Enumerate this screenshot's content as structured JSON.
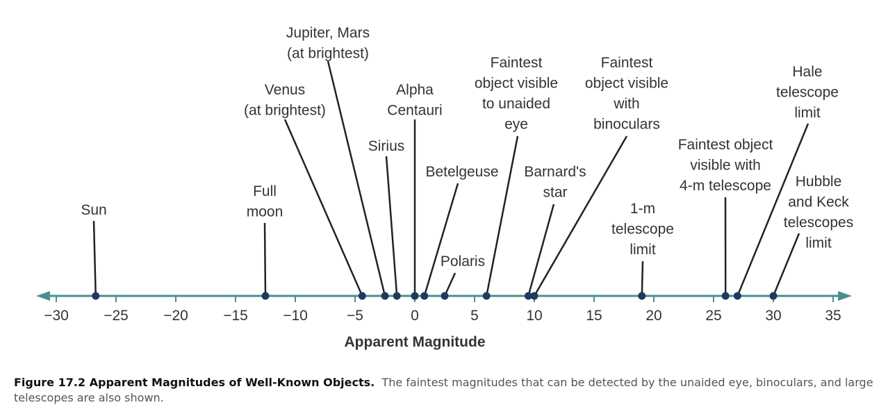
{
  "chart_data": {
    "type": "scatter",
    "xlabel": "Apparent Magnitude",
    "xlim": [
      -30,
      35
    ],
    "xticks": [
      "−30",
      "−25",
      "−20",
      "−15",
      "−10",
      "−5",
      "0",
      "5",
      "10",
      "15",
      "20",
      "25",
      "30",
      "35"
    ],
    "points": [
      {
        "label": [
          "Sun"
        ],
        "x": -26.7
      },
      {
        "label": [
          "Full",
          "moon"
        ],
        "x": -12.5
      },
      {
        "label": [
          "Venus",
          "(at brightest)"
        ],
        "x": -4.4
      },
      {
        "label": [
          "Jupiter, Mars",
          "(at brightest)"
        ],
        "x": -2.5
      },
      {
        "label": [
          "Sirius"
        ],
        "x": -1.5
      },
      {
        "label": [
          "Alpha",
          "Centauri"
        ],
        "x": 0
      },
      {
        "label": [
          "Betelgeuse"
        ],
        "x": 0.8
      },
      {
        "label": [
          "Polaris"
        ],
        "x": 2.5
      },
      {
        "label": [
          "Faintest",
          "object visible",
          "to unaided",
          "eye"
        ],
        "x": 6
      },
      {
        "label": [
          "Barnard's",
          "star"
        ],
        "x": 9.5
      },
      {
        "label": [
          "Faintest",
          "object visible",
          "with",
          "binoculars"
        ],
        "x": 10
      },
      {
        "label": [
          "1-m",
          "telescope",
          "limit"
        ],
        "x": 19
      },
      {
        "label": [
          "Faintest object",
          "visible with",
          "4-m telescope"
        ],
        "x": 26
      },
      {
        "label": [
          "Hale",
          "telescope",
          "limit"
        ],
        "x": 27
      },
      {
        "label": [
          "Hubble",
          "and Keck",
          "telescopes",
          "limit"
        ],
        "x": 30
      }
    ]
  },
  "colors": {
    "axis": "#4a8f91",
    "point": "#1e3a5f",
    "leader": "#222222"
  },
  "caption": {
    "title": "Figure 17.2 Apparent Magnitudes of Well-Known Objects.",
    "text": "The faintest magnitudes that can be detected by the unaided eye, binoculars, and large telescopes are also shown."
  }
}
